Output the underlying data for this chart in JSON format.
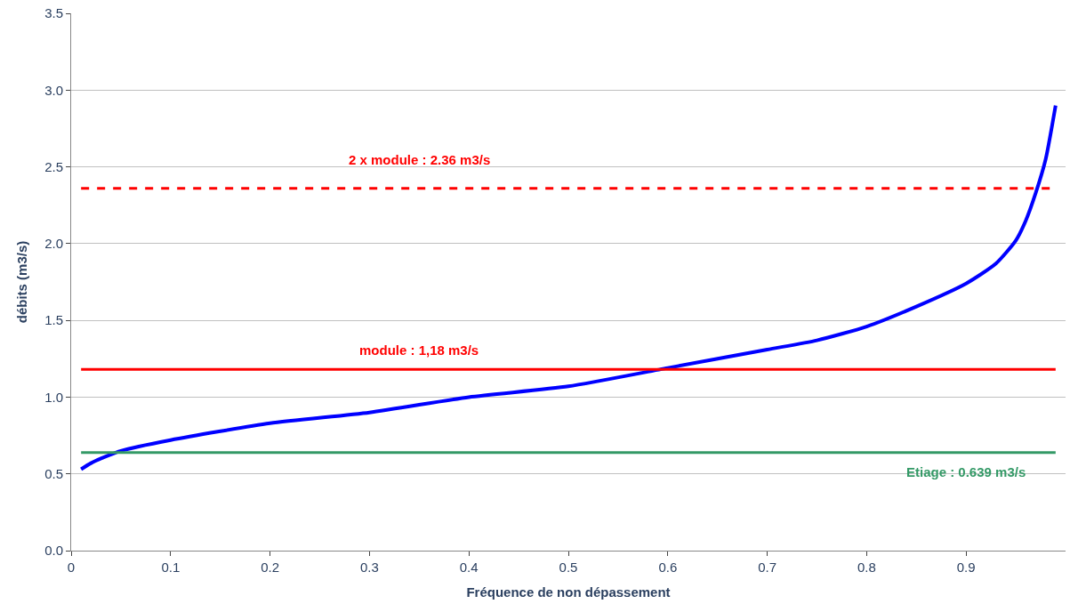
{
  "chart_data": {
    "type": "line",
    "xlabel": "Fréquence de non dépassement",
    "ylabel": "débits (m3/s)",
    "x": [
      0.01,
      0.02,
      0.03,
      0.05,
      0.1,
      0.2,
      0.3,
      0.4,
      0.5,
      0.6,
      0.7,
      0.75,
      0.8,
      0.85,
      0.9,
      0.93,
      0.95,
      0.96,
      0.97,
      0.98,
      0.99
    ],
    "series": [
      {
        "color": "#0000ff",
        "values": [
          0.53,
          0.57,
          0.6,
          0.65,
          0.72,
          0.83,
          0.9,
          1.0,
          1.07,
          1.19,
          1.31,
          1.37,
          1.46,
          1.59,
          1.74,
          1.87,
          2.02,
          2.15,
          2.33,
          2.55,
          2.9
        ]
      }
    ],
    "xlim": [
      0,
      1
    ],
    "xticks": [
      0,
      0.1,
      0.2,
      0.3,
      0.4,
      0.5,
      0.6,
      0.7,
      0.8,
      0.9
    ],
    "ylim": [
      0,
      3.5
    ],
    "yticks": [
      {
        "value": 0,
        "label": "0.0"
      },
      0.5,
      {
        "value": 1,
        "label": "1.0"
      },
      1.5,
      {
        "value": 2,
        "label": "2.0"
      },
      2.5,
      {
        "value": 3,
        "label": "3.0"
      },
      3.5
    ],
    "ref_lines": [
      {
        "axis": "y",
        "value": 2.36,
        "label": "2 x module : 2.36 m3/s",
        "color": "#ff0000",
        "line_style": "dashed"
      },
      {
        "axis": "y",
        "value": 1.18,
        "label": "module : 1,18 m3/s",
        "color": "#ff0000",
        "line_style": "solid"
      },
      {
        "axis": "y",
        "value": 0.639,
        "label": "Etiage : 0.639 m3/s",
        "color": "#339966",
        "line_style": "solid"
      }
    ],
    "grid": "y",
    "legend": false,
    "marker": "none",
    "line_style": "solid"
  }
}
